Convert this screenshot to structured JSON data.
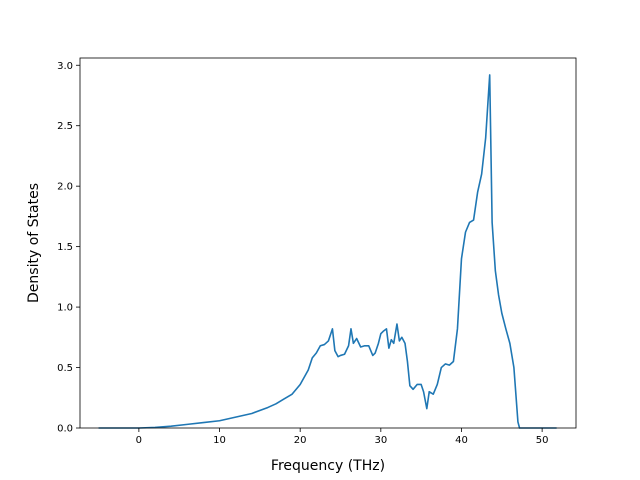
{
  "chart_data": {
    "type": "line",
    "title": "",
    "xlabel": "Frequency (THz)",
    "ylabel": "Density of States",
    "xlim": [
      -7.3,
      54.2
    ],
    "ylim": [
      0,
      3.06
    ],
    "xticks": [
      0,
      10,
      20,
      30,
      40,
      50
    ],
    "yticks": [
      0.0,
      0.5,
      1.0,
      1.5,
      2.0,
      2.5,
      3.0
    ],
    "xtick_labels": [
      "0",
      "10",
      "20",
      "30",
      "40",
      "50"
    ],
    "ytick_labels": [
      "0.0",
      "0.5",
      "1.0",
      "1.5",
      "2.0",
      "2.5",
      "3.0"
    ],
    "grid": false,
    "legend": "none",
    "series": [
      {
        "color": "#1f77b4",
        "x": [
          -5.0,
          0.0,
          2.0,
          4.0,
          6.0,
          8.0,
          10.0,
          12.0,
          14.0,
          16.0,
          17.0,
          18.0,
          19.0,
          20.0,
          20.5,
          21.0,
          21.5,
          22.0,
          22.5,
          23.0,
          23.5,
          24.0,
          24.3,
          24.7,
          25.0,
          25.5,
          26.0,
          26.3,
          26.6,
          27.0,
          27.5,
          28.0,
          28.5,
          29.0,
          29.3,
          29.7,
          30.0,
          30.3,
          30.7,
          31.0,
          31.3,
          31.6,
          32.0,
          32.3,
          32.6,
          33.0,
          33.3,
          33.6,
          34.0,
          34.5,
          35.0,
          35.3,
          35.7,
          36.0,
          36.5,
          37.0,
          37.5,
          38.0,
          38.5,
          39.0,
          39.5,
          40.0,
          40.5,
          41.0,
          41.5,
          42.0,
          42.5,
          43.0,
          43.5,
          43.8,
          44.2,
          44.6,
          45.0,
          45.5,
          46.0,
          46.5,
          47.0,
          47.2,
          48.0,
          50.0,
          51.8
        ],
        "y": [
          0.0,
          0.0,
          0.005,
          0.015,
          0.03,
          0.045,
          0.06,
          0.09,
          0.12,
          0.17,
          0.2,
          0.24,
          0.28,
          0.36,
          0.42,
          0.48,
          0.58,
          0.62,
          0.68,
          0.69,
          0.72,
          0.82,
          0.64,
          0.59,
          0.6,
          0.61,
          0.68,
          0.82,
          0.7,
          0.74,
          0.67,
          0.68,
          0.68,
          0.6,
          0.62,
          0.7,
          0.78,
          0.8,
          0.82,
          0.66,
          0.73,
          0.7,
          0.86,
          0.72,
          0.75,
          0.7,
          0.55,
          0.35,
          0.32,
          0.36,
          0.36,
          0.3,
          0.16,
          0.3,
          0.28,
          0.36,
          0.5,
          0.53,
          0.52,
          0.55,
          0.82,
          1.4,
          1.62,
          1.7,
          1.72,
          1.95,
          2.1,
          2.4,
          2.92,
          1.7,
          1.3,
          1.1,
          0.95,
          0.82,
          0.7,
          0.5,
          0.05,
          0.0,
          0.0,
          0.0,
          0.0
        ]
      }
    ]
  }
}
